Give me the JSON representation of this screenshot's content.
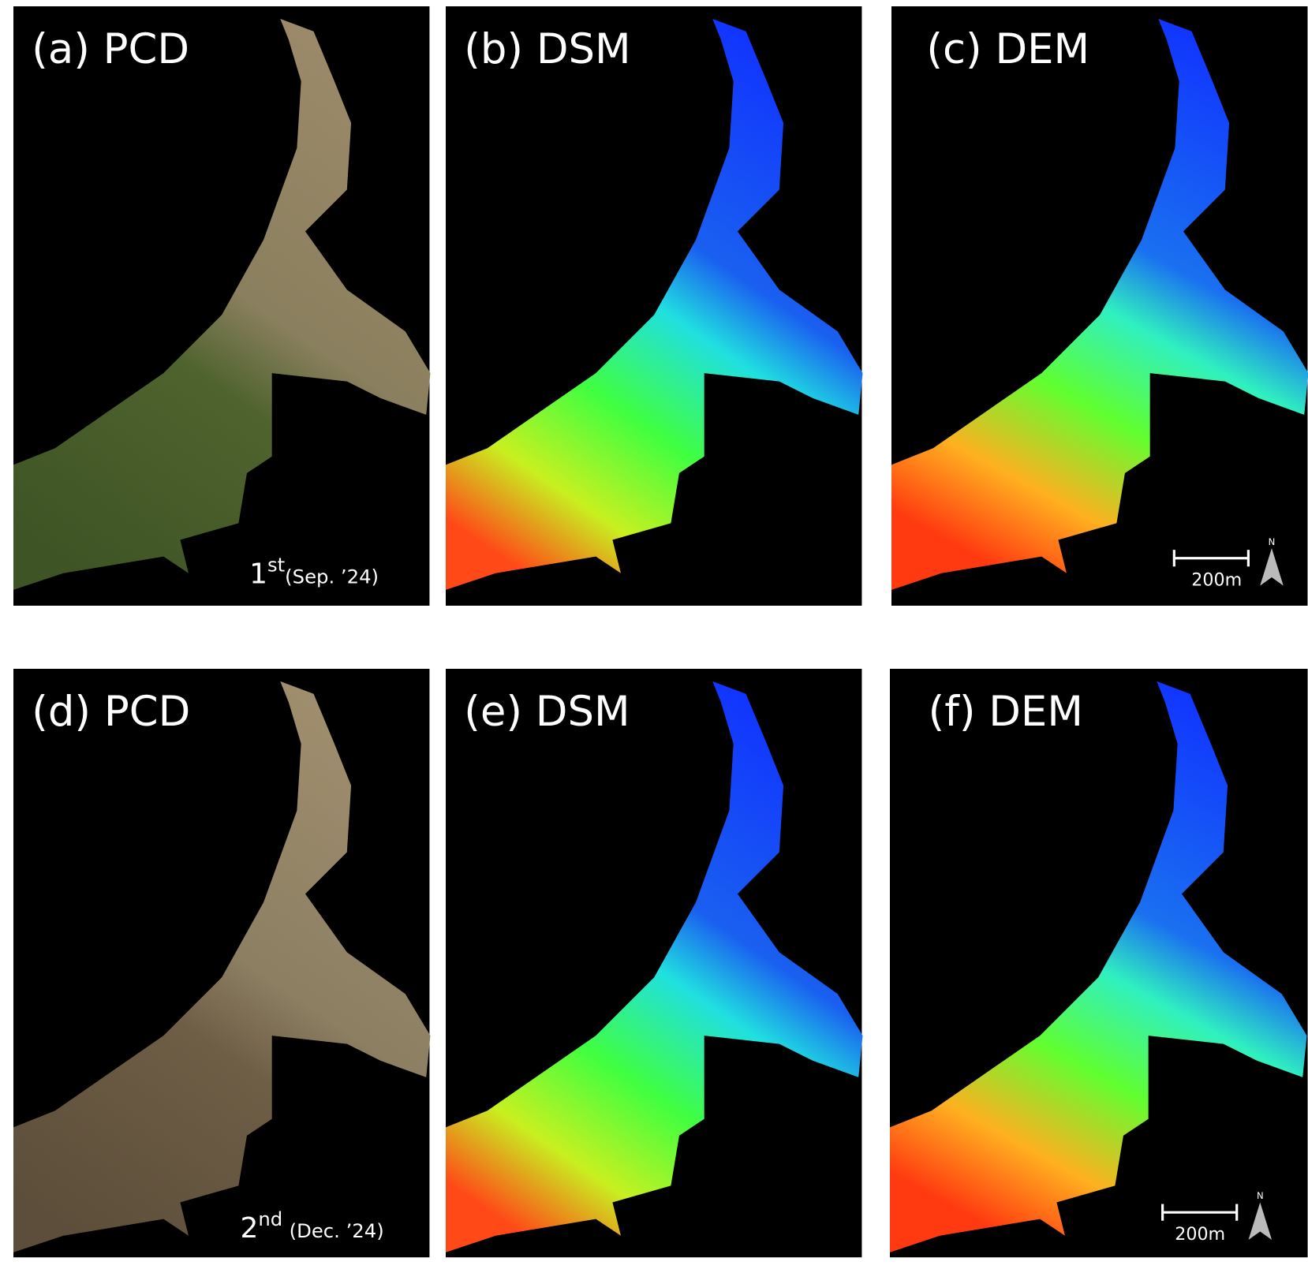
{
  "panels": [
    {
      "label": "(a) PCD"
    },
    {
      "label": "(b) DSM"
    },
    {
      "label": "(c) DEM"
    },
    {
      "label": "(d) PCD"
    },
    {
      "label": "(e) DSM"
    },
    {
      "label": "(f) DEM"
    }
  ],
  "dates": [
    {
      "ordinal": "1",
      "suffix": "st",
      "date": "(Sep. ’24)"
    },
    {
      "ordinal": "2",
      "suffix": "nd",
      "date": "(Dec. ’24)"
    }
  ],
  "scale_bar": {
    "label": "200m",
    "north": "N"
  }
}
